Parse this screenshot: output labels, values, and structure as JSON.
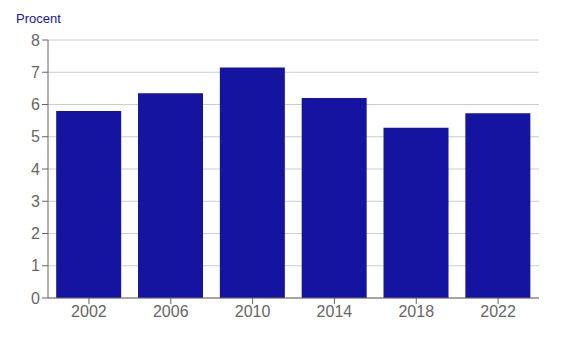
{
  "chart_data": {
    "type": "bar",
    "ylabel": "Procent",
    "categories": [
      "2002",
      "2006",
      "2010",
      "2014",
      "2018",
      "2022"
    ],
    "values": [
      5.8,
      6.35,
      7.15,
      6.2,
      5.28,
      5.73
    ],
    "color": "#1414a0",
    "ylim": [
      0,
      8
    ],
    "yticks": [
      0,
      1,
      2,
      3,
      4,
      5,
      6,
      7,
      8
    ],
    "grid": true
  }
}
